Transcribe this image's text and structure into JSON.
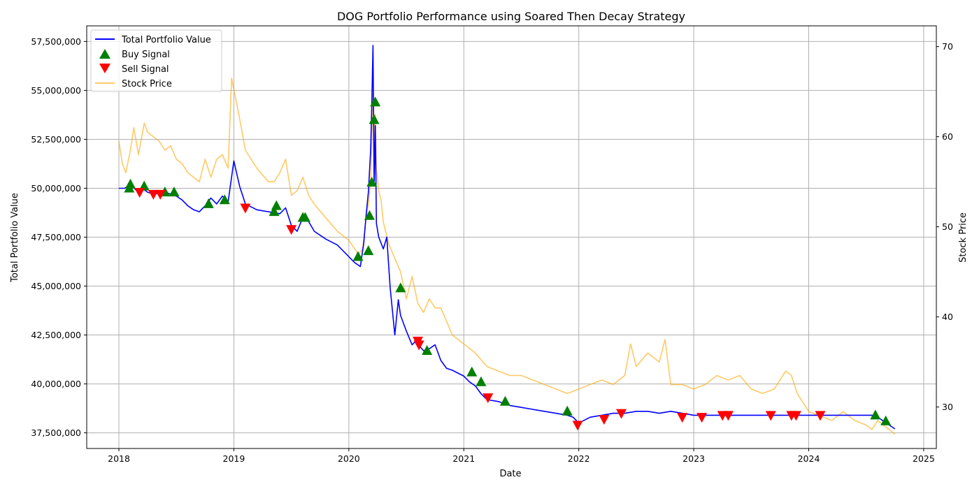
{
  "chart_data": {
    "type": "line",
    "title": "DOG Portfolio Performance using Soared Then Decay Strategy",
    "xlabel": "Date",
    "ylabel": "Total Portfolio Value",
    "y2label": "Stock Price",
    "xlim": [
      2017.72,
      2025.11
    ],
    "ylim": [
      36700000,
      58300000
    ],
    "y2lim": [
      25.4,
      72.3
    ],
    "grid": true,
    "legend_position": "top-left",
    "x_ticks": [
      "2018",
      "2019",
      "2020",
      "2021",
      "2022",
      "2023",
      "2024",
      "2025"
    ],
    "x_tick_values": [
      2018,
      2019,
      2020,
      2021,
      2022,
      2023,
      2024,
      2025
    ],
    "y_ticks": [
      "37,500,000",
      "40,000,000",
      "42,500,000",
      "45,000,000",
      "47,500,000",
      "50,000,000",
      "52,500,000",
      "55,000,000",
      "57,500,000"
    ],
    "y_tick_values": [
      37500000,
      40000000,
      42500000,
      45000000,
      47500000,
      50000000,
      52500000,
      55000000,
      57500000
    ],
    "y2_ticks": [
      "30",
      "40",
      "50",
      "60",
      "70"
    ],
    "y2_tick_values": [
      30,
      40,
      50,
      60,
      70
    ],
    "colors": {
      "portfolio": "#0000ff",
      "buy": "#008000",
      "sell": "#ff0000",
      "price": "#ffa500"
    },
    "series": [
      {
        "name": "Total Portfolio Value",
        "axis": "left",
        "x": [
          2018.0,
          2018.05,
          2018.1,
          2018.15,
          2018.2,
          2018.25,
          2018.3,
          2018.35,
          2018.4,
          2018.45,
          2018.5,
          2018.55,
          2018.6,
          2018.65,
          2018.7,
          2018.75,
          2018.8,
          2018.85,
          2018.9,
          2018.95,
          2019.0,
          2019.05,
          2019.1,
          2019.2,
          2019.3,
          2019.4,
          2019.45,
          2019.5,
          2019.55,
          2019.6,
          2019.65,
          2019.7,
          2019.8,
          2019.9,
          2020.0,
          2020.05,
          2020.1,
          2020.13,
          2020.15,
          2020.17,
          2020.19,
          2020.2,
          2020.21,
          2020.22,
          2020.23,
          2020.24,
          2020.26,
          2020.28,
          2020.3,
          2020.33,
          2020.36,
          2020.4,
          2020.43,
          2020.45,
          2020.5,
          2020.55,
          2020.6,
          2020.62,
          2020.65,
          2020.7,
          2020.75,
          2020.8,
          2020.85,
          2020.9,
          2021.0,
          2021.05,
          2021.1,
          2021.15,
          2021.2,
          2021.3,
          2021.4,
          2021.5,
          2021.6,
          2021.7,
          2021.8,
          2021.9,
          2021.95,
          2022.0,
          2022.1,
          2022.2,
          2022.3,
          2022.4,
          2022.5,
          2022.6,
          2022.7,
          2022.8,
          2022.9,
          2023.0,
          2023.2,
          2023.4,
          2023.6,
          2023.8,
          2024.0,
          2024.2,
          2024.4,
          2024.55,
          2024.6,
          2024.65,
          2024.7,
          2024.75
        ],
        "values": [
          50000000,
          50000000,
          50200000,
          49900000,
          50000000,
          49800000,
          49700000,
          49750000,
          49800000,
          49700000,
          49600000,
          49400000,
          49100000,
          48900000,
          48800000,
          49100000,
          49500000,
          49200000,
          49600000,
          49300000,
          51400000,
          50100000,
          49200000,
          48900000,
          48800000,
          48700000,
          49000000,
          48100000,
          47800000,
          48500000,
          48300000,
          47800000,
          47400000,
          47100000,
          46500000,
          46200000,
          46000000,
          47200000,
          48600000,
          49800000,
          52000000,
          54300000,
          57300000,
          50200000,
          53200000,
          48200000,
          47500000,
          47200000,
          46900000,
          47500000,
          44900000,
          42500000,
          44300000,
          43500000,
          42700000,
          42000000,
          42300000,
          41900000,
          41700000,
          41800000,
          42000000,
          41200000,
          40800000,
          40700000,
          40400000,
          40100000,
          39900000,
          39500000,
          39200000,
          39100000,
          38900000,
          38800000,
          38700000,
          38600000,
          38500000,
          38400000,
          38300000,
          38000000,
          38300000,
          38400000,
          38500000,
          38500000,
          38600000,
          38600000,
          38500000,
          38600000,
          38500000,
          38400000,
          38400000,
          38400000,
          38400000,
          38400000,
          38400000,
          38400000,
          38400000,
          38400000,
          38300000,
          38100000,
          37900000,
          37700000
        ]
      },
      {
        "name": "Stock Price",
        "axis": "right",
        "x": [
          2018.0,
          2018.03,
          2018.06,
          2018.1,
          2018.13,
          2018.17,
          2018.22,
          2018.25,
          2018.3,
          2018.35,
          2018.4,
          2018.45,
          2018.5,
          2018.55,
          2018.6,
          2018.65,
          2018.7,
          2018.75,
          2018.8,
          2018.85,
          2018.9,
          2018.95,
          2018.98,
          2019.05,
          2019.1,
          2019.2,
          2019.3,
          2019.35,
          2019.4,
          2019.45,
          2019.5,
          2019.55,
          2019.6,
          2019.65,
          2019.7,
          2019.8,
          2019.9,
          2020.0,
          2020.08,
          2020.12,
          2020.15,
          2020.17,
          2020.19,
          2020.2,
          2020.21,
          2020.22,
          2020.23,
          2020.24,
          2020.26,
          2020.28,
          2020.3,
          2020.35,
          2020.4,
          2020.45,
          2020.5,
          2020.55,
          2020.6,
          2020.65,
          2020.7,
          2020.75,
          2020.8,
          2020.85,
          2020.9,
          2021.0,
          2021.05,
          2021.1,
          2021.2,
          2021.3,
          2021.4,
          2021.5,
          2021.6,
          2021.7,
          2021.8,
          2021.9,
          2022.0,
          2022.1,
          2022.2,
          2022.3,
          2022.4,
          2022.45,
          2022.5,
          2022.6,
          2022.7,
          2022.75,
          2022.8,
          2022.9,
          2023.0,
          2023.1,
          2023.2,
          2023.3,
          2023.4,
          2023.5,
          2023.6,
          2023.7,
          2023.8,
          2023.85,
          2023.9,
          2024.0,
          2024.1,
          2024.2,
          2024.3,
          2024.4,
          2024.5,
          2024.55,
          2024.6,
          2024.65,
          2024.7,
          2024.75
        ],
        "values": [
          59.5,
          57.0,
          56.0,
          58.5,
          61.0,
          58.0,
          61.5,
          60.5,
          60.0,
          59.5,
          58.5,
          59.0,
          57.5,
          57.0,
          56.0,
          55.5,
          55.0,
          57.5,
          55.5,
          57.5,
          58.0,
          56.5,
          66.5,
          62.0,
          58.5,
          56.5,
          55.0,
          55.0,
          56.0,
          57.5,
          53.5,
          54.0,
          55.5,
          53.5,
          52.5,
          51.0,
          49.5,
          48.5,
          47.0,
          47.5,
          51.0,
          52.5,
          55.0,
          59.5,
          65.0,
          60.0,
          62.5,
          56.5,
          54.0,
          53.0,
          50.5,
          48.0,
          46.5,
          45.0,
          42.0,
          44.5,
          41.5,
          40.5,
          42.0,
          41.0,
          41.0,
          39.5,
          38.0,
          37.0,
          36.5,
          36.0,
          34.5,
          34.0,
          33.5,
          33.5,
          33.0,
          32.5,
          32.0,
          31.5,
          32.0,
          32.5,
          33.0,
          32.5,
          33.5,
          37.0,
          34.5,
          36.0,
          35.0,
          37.5,
          32.5,
          32.5,
          32.0,
          32.5,
          33.5,
          33.0,
          33.5,
          32.0,
          31.5,
          32.0,
          34.0,
          33.5,
          31.5,
          29.5,
          29.0,
          28.5,
          29.5,
          28.5,
          28.0,
          27.5,
          28.5,
          28.0,
          27.5,
          27.0
        ]
      }
    ],
    "buy_signals": {
      "name": "Buy Signal",
      "x": [
        2018.09,
        2018.1,
        2018.22,
        2018.4,
        2018.48,
        2018.78,
        2018.92,
        2019.35,
        2019.37,
        2019.6,
        2019.62,
        2020.08,
        2020.17,
        2020.18,
        2020.2,
        2020.22,
        2020.23,
        2020.45,
        2020.68,
        2021.07,
        2021.15,
        2021.36,
        2021.9,
        2024.58,
        2024.67
      ],
      "values": [
        50000000,
        50200000,
        50100000,
        49800000,
        49800000,
        49200000,
        49400000,
        48800000,
        49100000,
        48500000,
        48500000,
        46500000,
        46800000,
        48600000,
        50300000,
        53500000,
        54400000,
        44900000,
        41700000,
        40600000,
        40100000,
        39100000,
        38600000,
        38400000,
        38100000
      ]
    },
    "sell_signals": {
      "name": "Sell Signal",
      "x": [
        2018.18,
        2018.3,
        2018.36,
        2019.1,
        2019.5,
        2020.6,
        2020.61,
        2021.21,
        2021.99,
        2022.22,
        2022.37,
        2022.9,
        2023.07,
        2023.25,
        2023.3,
        2023.67,
        2023.85,
        2023.89,
        2024.1
      ],
      "values": [
        49800000,
        49700000,
        49700000,
        49000000,
        47900000,
        42200000,
        42000000,
        39300000,
        37900000,
        38200000,
        38500000,
        38300000,
        38300000,
        38400000,
        38400000,
        38400000,
        38400000,
        38400000,
        38400000
      ]
    }
  }
}
